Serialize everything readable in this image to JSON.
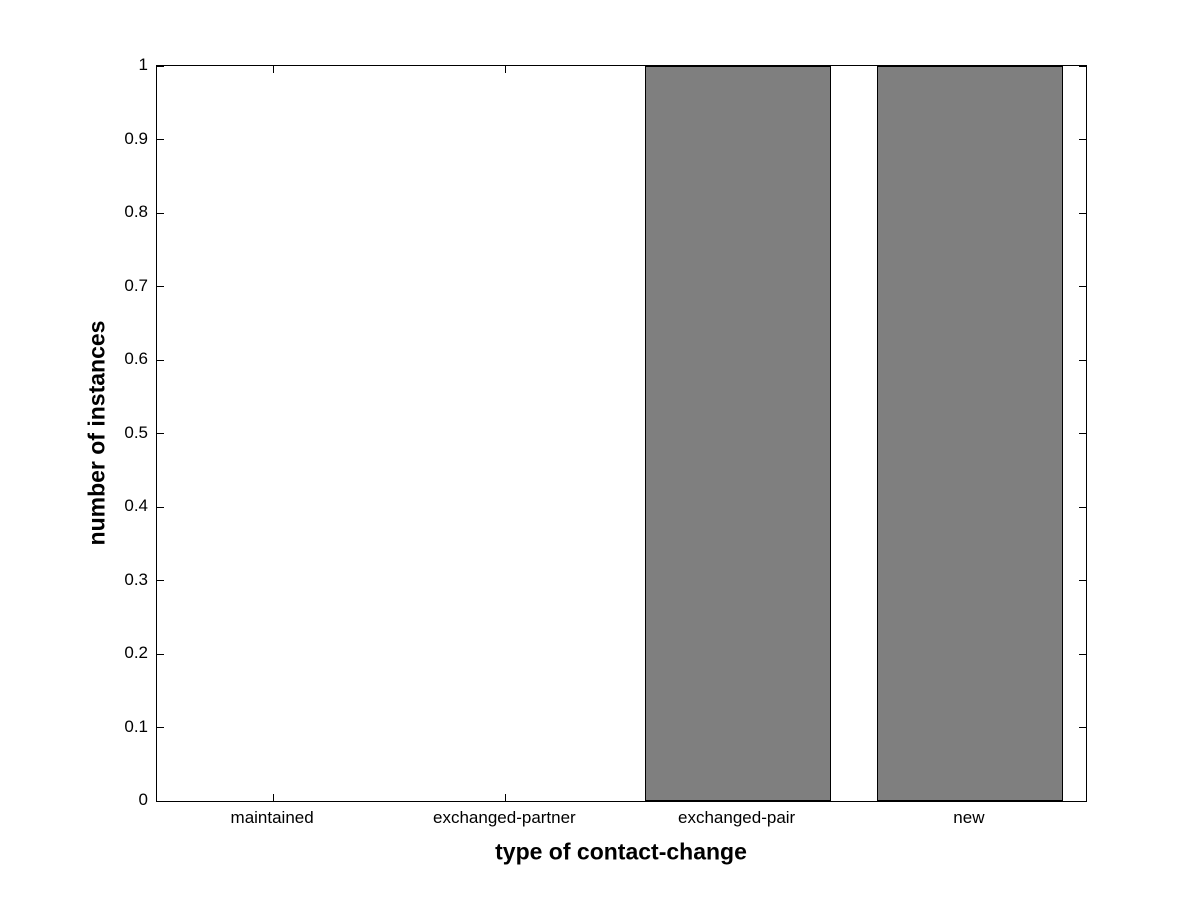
{
  "figure": {
    "background": "#ffffff",
    "axis_color": "#000000"
  },
  "chart_data": {
    "type": "bar",
    "categories": [
      "maintained",
      "exchanged-partner",
      "exchanged-pair",
      "new"
    ],
    "values": [
      0,
      0,
      1,
      1
    ],
    "title": "",
    "xlabel": "type of contact-change",
    "ylabel": "number of instances",
    "ylim": [
      0,
      1
    ],
    "yticks": [
      0,
      0.1,
      0.2,
      0.3,
      0.4,
      0.5,
      0.6,
      0.7,
      0.8,
      0.9,
      1
    ],
    "ytick_labels": [
      "0",
      "0.1",
      "0.2",
      "0.3",
      "0.4",
      "0.5",
      "0.6",
      "0.7",
      "0.8",
      "0.9",
      "1"
    ],
    "bar_width_fraction": 0.8,
    "bar_fill": "#7f7f7f",
    "bar_edge": "#000000",
    "grid": false,
    "legend": null
  }
}
